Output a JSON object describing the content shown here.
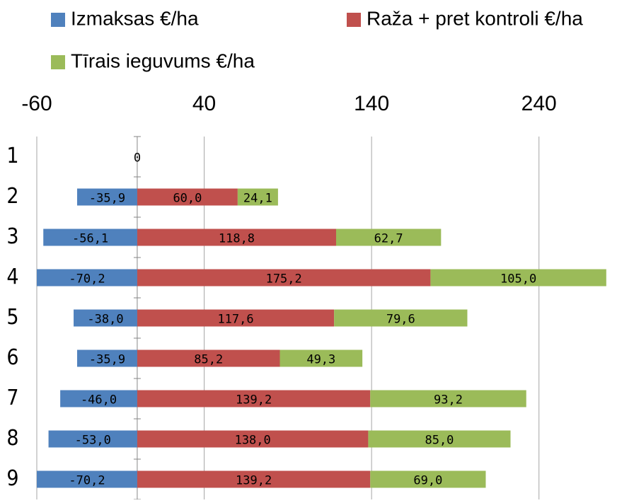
{
  "chart_data": {
    "type": "bar",
    "orientation": "horizontal",
    "stacked": true,
    "categories": [
      "1",
      "2",
      "3",
      "4",
      "5",
      "6",
      "7",
      "8",
      "9"
    ],
    "series": [
      {
        "name": "Izmaksas €/ha",
        "color": "#4f81bd",
        "values": [
          0,
          -35.9,
          -56.1,
          -70.2,
          -38.0,
          -35.9,
          -46.0,
          -53.0,
          -70.2
        ],
        "value_labels": [
          "0",
          "-35,9",
          "-56,1",
          "-70,2",
          "-38,0",
          "-35,9",
          "-46,0",
          "-53,0",
          "-70,2"
        ]
      },
      {
        "name": "Raža + pret kontroli €/ha",
        "color": "#c0504d",
        "values": [
          null,
          60.0,
          118.8,
          175.2,
          117.6,
          85.2,
          139.2,
          138.0,
          139.2
        ],
        "value_labels": [
          null,
          "60,0",
          "118,8",
          "175,2",
          "117,6",
          "85,2",
          "139,2",
          "138,0",
          "139,2"
        ]
      },
      {
        "name": "Tīrais ieguvums €/ha",
        "color": "#9bbb59",
        "values": [
          null,
          24.1,
          62.7,
          105.0,
          79.6,
          49.3,
          93.2,
          85.0,
          69.0
        ],
        "value_labels": [
          null,
          "24,1",
          "62,7",
          "105,0",
          "79,6",
          "49,3",
          "93,2",
          "85,0",
          "69,0"
        ]
      }
    ],
    "xlim": [
      -60,
      290
    ],
    "xticks": [
      -60,
      40,
      140,
      240
    ],
    "grid": true,
    "legend": "top"
  }
}
